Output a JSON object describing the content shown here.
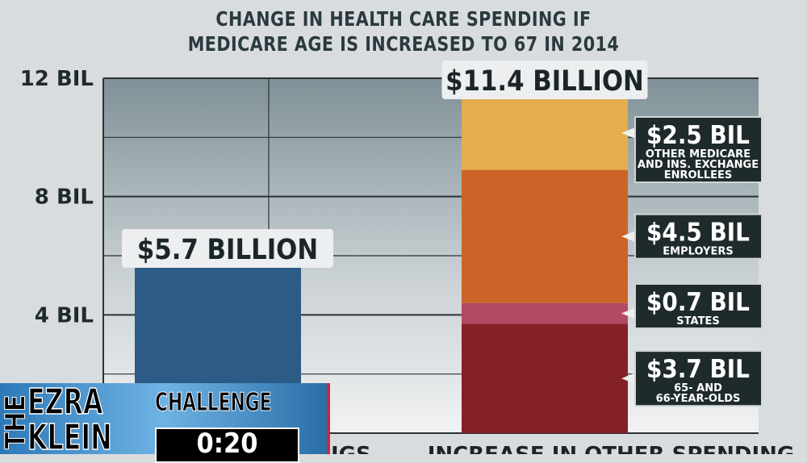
{
  "chart_data": {
    "type": "bar",
    "title": "CHANGE IN HEALTH CARE SPENDING IF MEDICARE AGE IS INCREASED TO 67 IN 2014",
    "title_lines": [
      "CHANGE IN HEALTH CARE SPENDING IF",
      "MEDICARE AGE IS INCREASED TO 67 IN 2014"
    ],
    "ylim": [
      0,
      12
    ],
    "yticks": [
      {
        "value": 4,
        "label": "4 BIL"
      },
      {
        "value": 8,
        "label": "8 BIL"
      },
      {
        "value": 12,
        "label": "12 BIL"
      }
    ],
    "grid": true,
    "stacked": true,
    "categories": [
      "IGS",
      "INCREASE IN OTHER SPENDING"
    ],
    "bars": [
      {
        "category": "IGS",
        "total": 5.7,
        "total_label": "$5.7 BILLION",
        "color": "#2c5b85",
        "segments": [
          {
            "value": 5.7,
            "color": "#2c5b85"
          }
        ]
      },
      {
        "category": "INCREASE IN OTHER SPENDING",
        "total": 11.4,
        "total_label": "$11.4 BILLION",
        "segments": [
          {
            "value": 3.7,
            "color": "#842126",
            "label": "$3.7 BIL",
            "sublabel": [
              "65- AND",
              "66-YEAR-OLDS"
            ]
          },
          {
            "value": 0.7,
            "color": "#b24a63",
            "label": "$0.7 BIL",
            "sublabel": [
              "STATES"
            ]
          },
          {
            "value": 4.5,
            "color": "#cd6427",
            "label": "$4.5 BIL",
            "sublabel": [
              "EMPLOYERS"
            ]
          },
          {
            "value": 2.5,
            "color": "#e5ad4d",
            "label": "$2.5 BIL",
            "sublabel": [
              "OTHER MEDICARE",
              "AND INS. EXCHANGE",
              "ENROLLEES"
            ]
          }
        ]
      }
    ]
  },
  "overlay": {
    "the": "THE",
    "name_line1": "EZRA",
    "name_line2": "KLEIN",
    "challenge": "CHALLENGE",
    "timer": "0:20"
  }
}
